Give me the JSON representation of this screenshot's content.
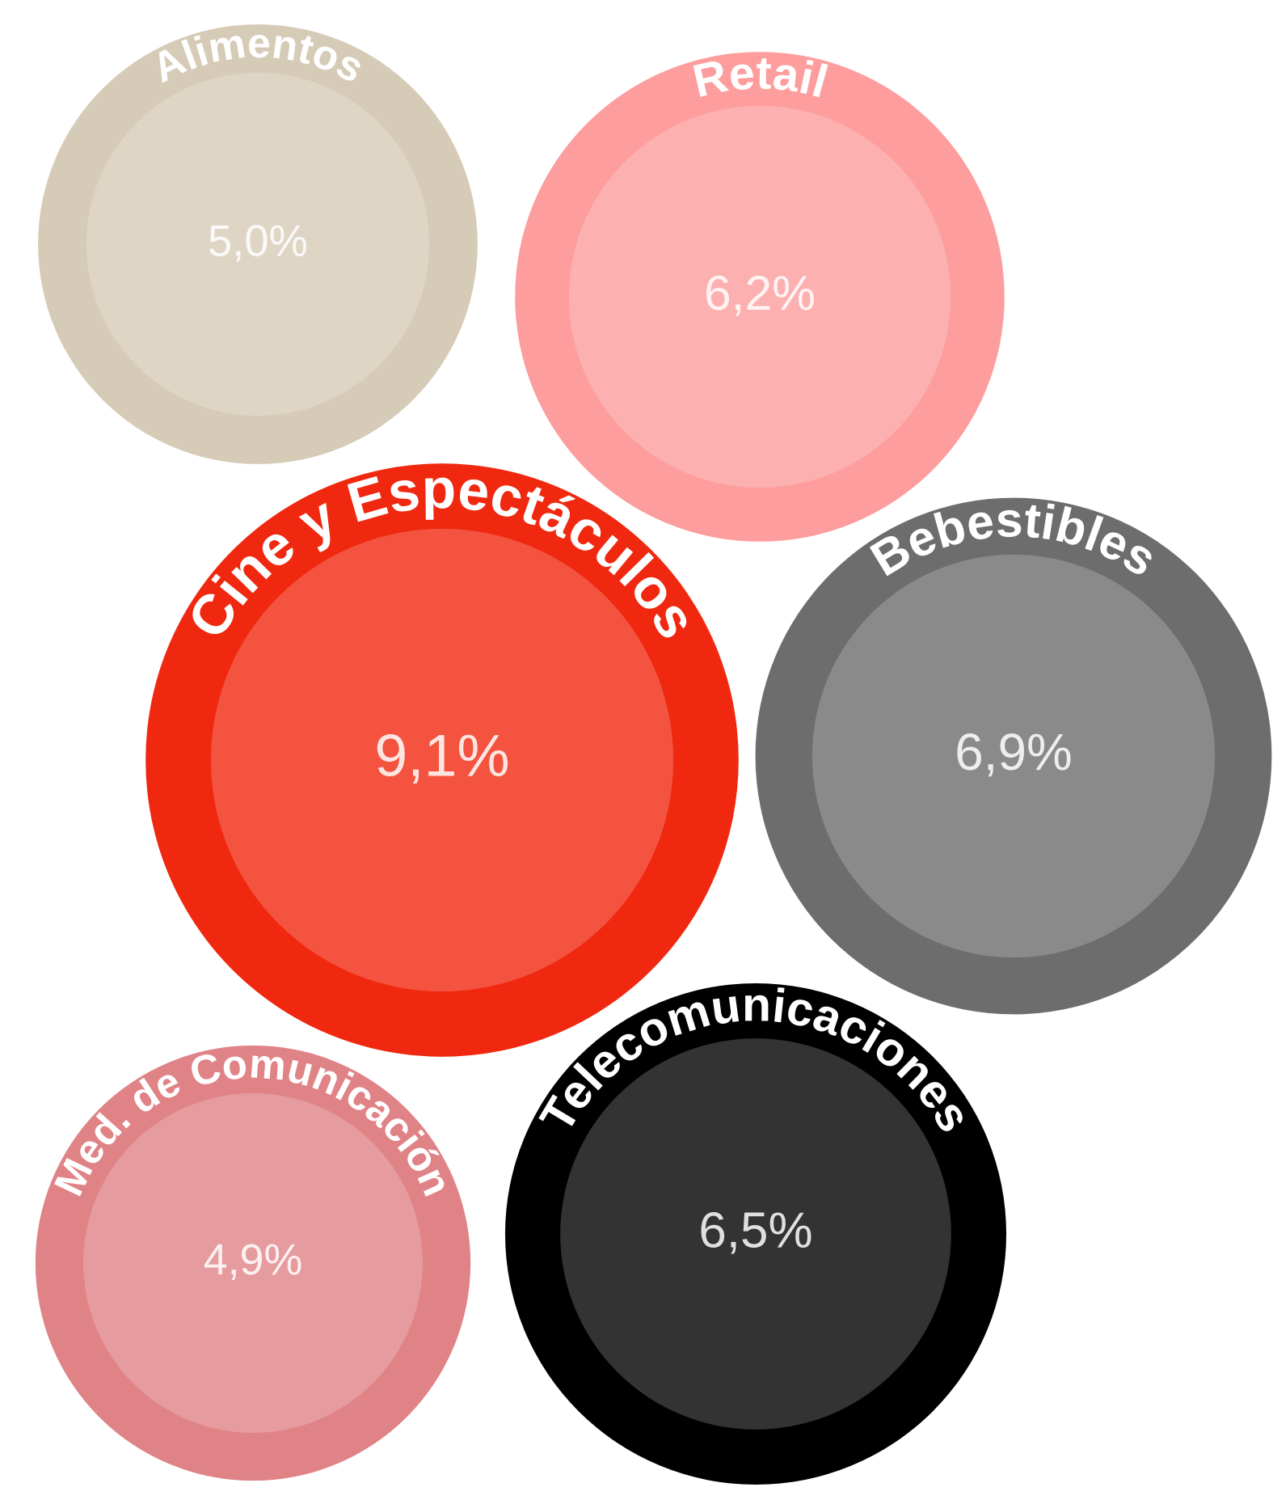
{
  "chart_data": {
    "type": "bubble",
    "categories": [
      "Alimentos",
      "Retail",
      "Cine y Espectáculos",
      "Bebestibles",
      "Med. de Comunicación",
      "Telecomunicaciones"
    ],
    "values": [
      5.0,
      6.2,
      9.1,
      6.9,
      4.9,
      6.5
    ],
    "value_labels": [
      "5,0%",
      "6,2%",
      "9,1%",
      "6,9%",
      "4,9%",
      "6,5%"
    ],
    "colors": [
      "#d6cbb7",
      "#fd9d9d",
      "#f0280f",
      "#6d6d6d",
      "#e08387",
      "#000000"
    ]
  }
}
